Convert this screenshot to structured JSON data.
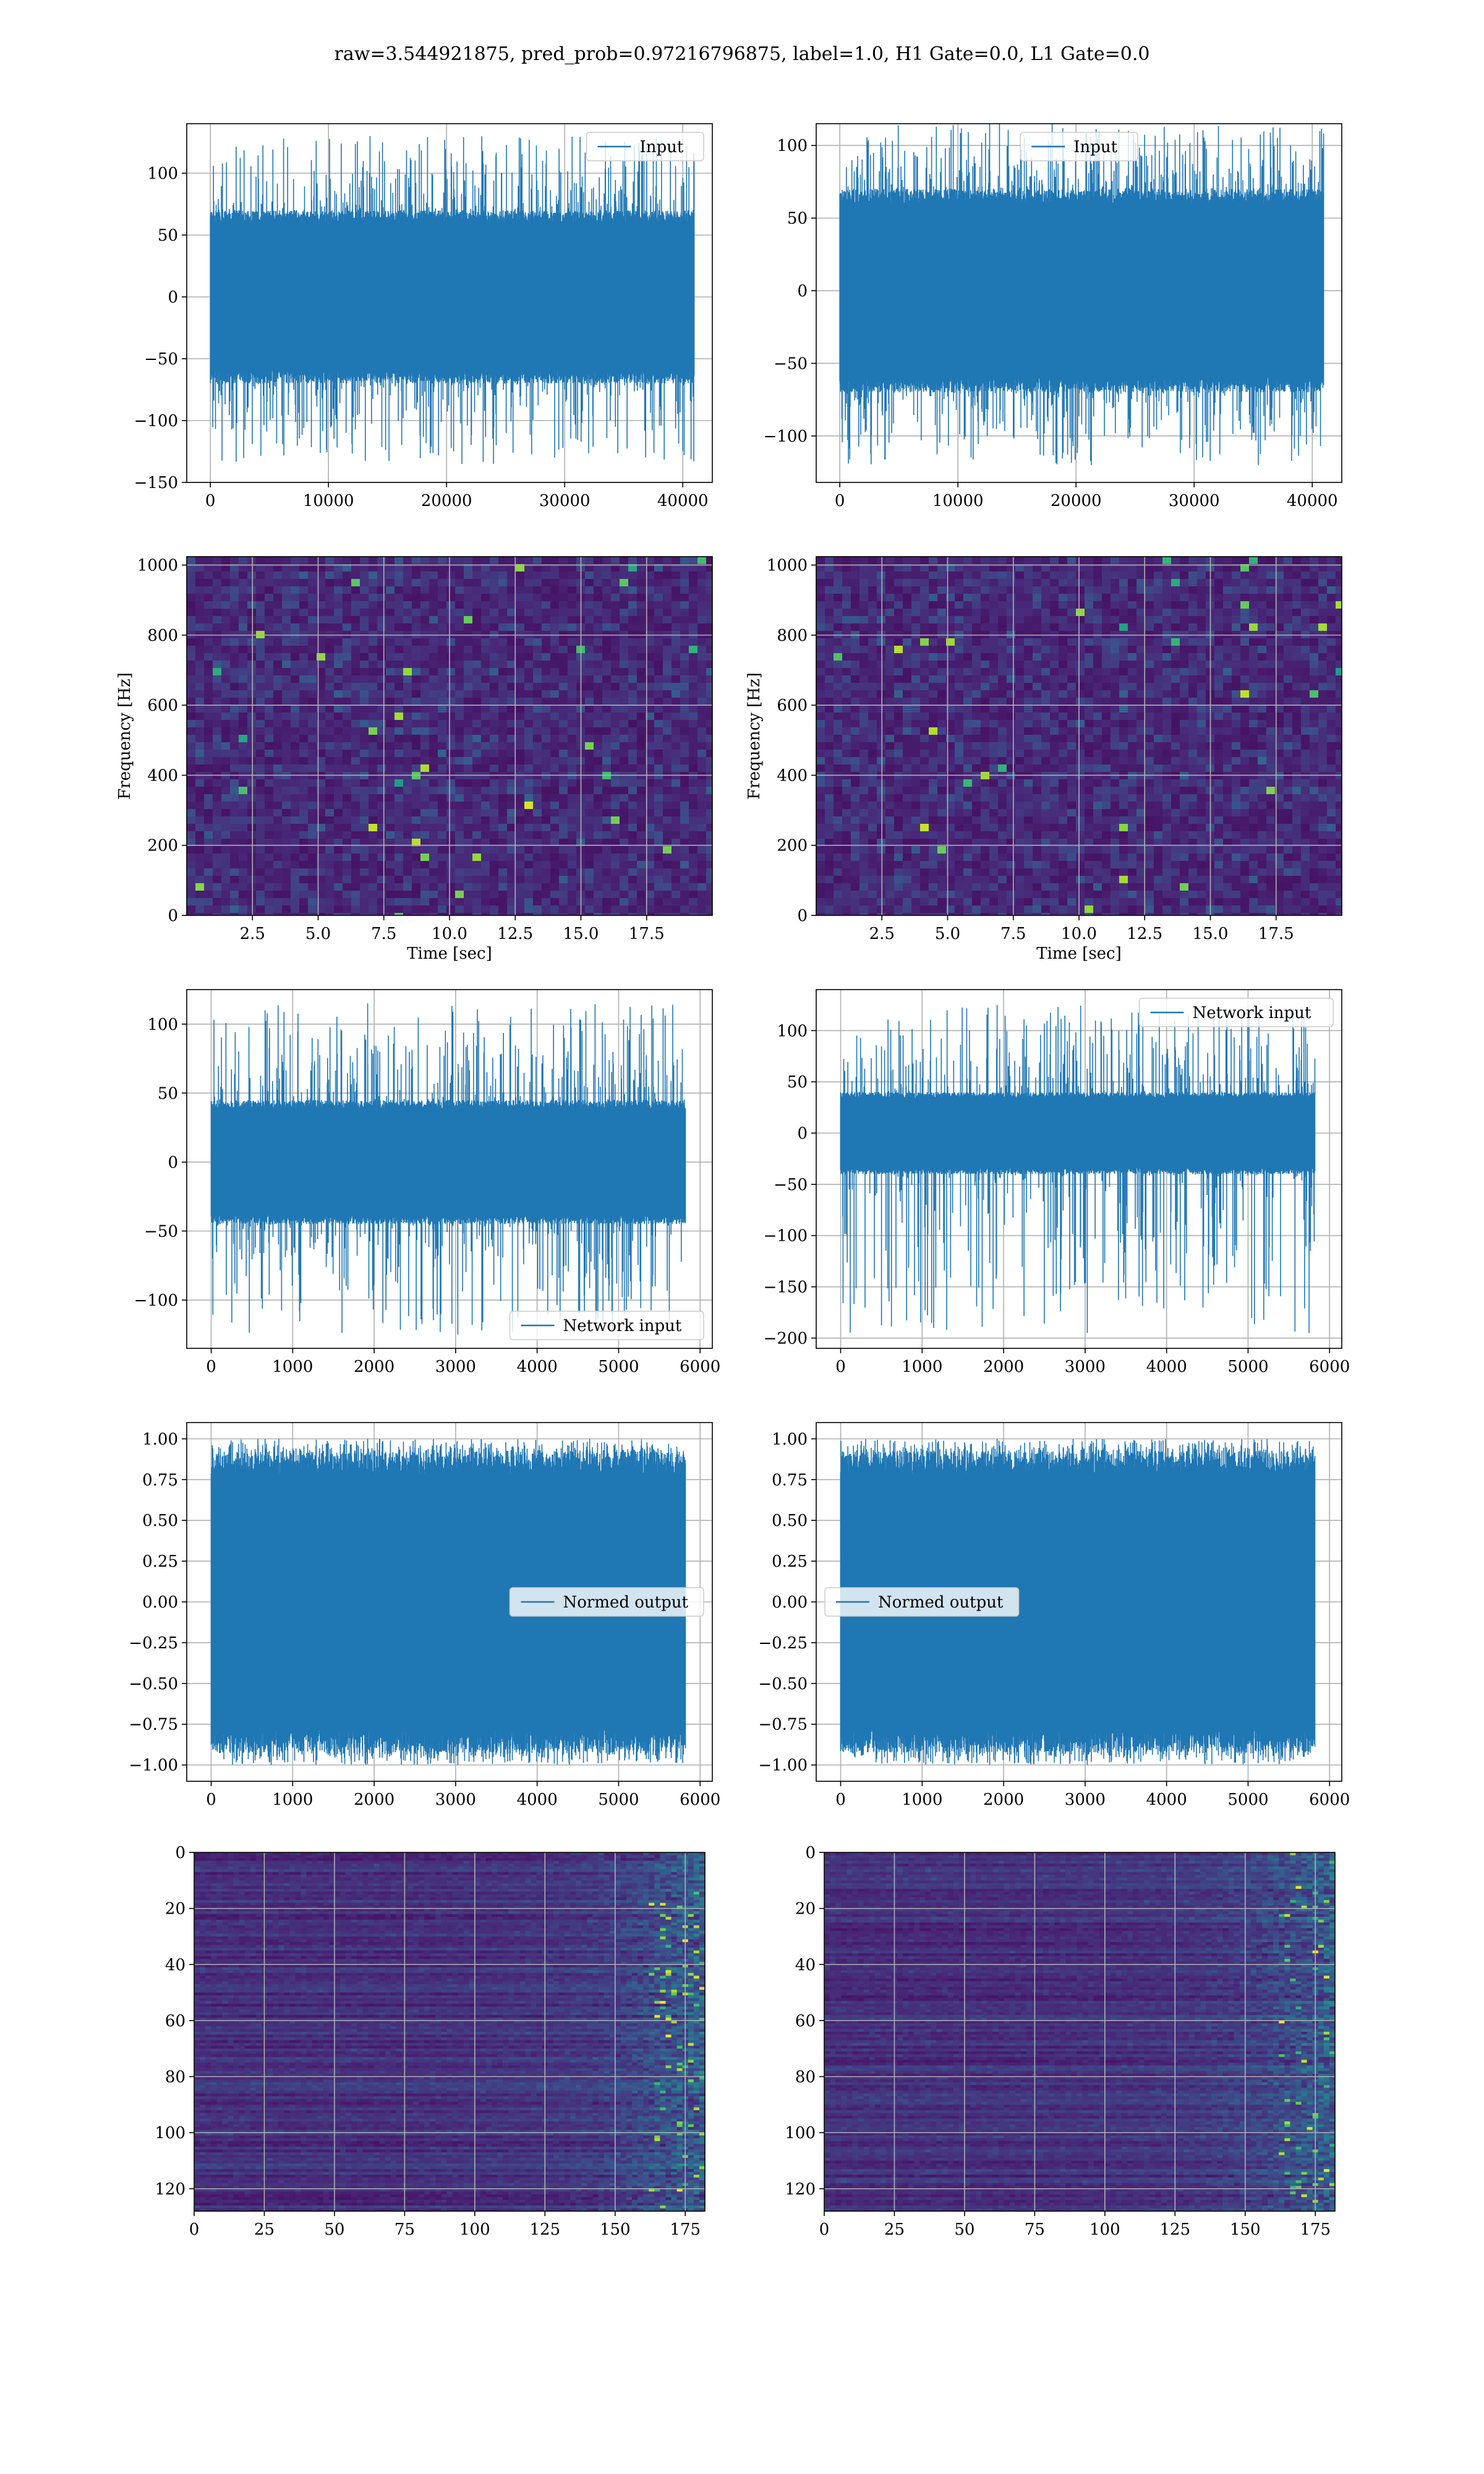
{
  "suptitle": "raw=3.544921875, pred_prob=0.97216796875, label=1.0, H1 Gate=0.0, L1 Gate=0.0",
  "colors": {
    "line": "#1f77b4",
    "grid": "#b0b0b0",
    "axes": "#000000"
  },
  "chart_data": [
    {
      "id": "r1c1",
      "type": "line",
      "title": "",
      "xlabel": "",
      "ylabel": "",
      "xlim": [
        -2000,
        42500
      ],
      "ylim": [
        -150,
        140
      ],
      "xticks": [
        0,
        10000,
        20000,
        30000,
        40000
      ],
      "yticks": [
        -150,
        -100,
        -50,
        0,
        50,
        100
      ],
      "grid": true,
      "legend": "upper right",
      "series": [
        {
          "name": "Input",
          "x_range": [
            0,
            40960
          ],
          "envelope": [
            -70,
            70
          ],
          "spikes": [
            -135,
            130
          ]
        }
      ]
    },
    {
      "id": "r1c2",
      "type": "line",
      "title": "",
      "xlabel": "",
      "ylabel": "",
      "xlim": [
        -2000,
        42500
      ],
      "ylim": [
        -132,
        115
      ],
      "xticks": [
        0,
        10000,
        20000,
        30000,
        40000
      ],
      "yticks": [
        -100,
        -50,
        0,
        50,
        100
      ],
      "grid": true,
      "legend": "upper center",
      "series": [
        {
          "name": "Input",
          "x_range": [
            0,
            40960
          ],
          "envelope": [
            -70,
            70
          ],
          "spikes": [
            -120,
            115
          ]
        }
      ]
    },
    {
      "id": "r2c1",
      "type": "heatmap",
      "title": "",
      "xlabel": "Time [sec]",
      "ylabel": "Frequency [Hz]",
      "xlim": [
        0,
        20
      ],
      "ylim": [
        0,
        1024
      ],
      "xticks": [
        2.5,
        5.0,
        7.5,
        10.0,
        12.5,
        15.0,
        17.5
      ],
      "yticks": [
        0,
        200,
        400,
        600,
        800,
        1000
      ],
      "grid": true,
      "colormap": "viridis"
    },
    {
      "id": "r2c2",
      "type": "heatmap",
      "title": "",
      "xlabel": "Time [sec]",
      "ylabel": "Frequency [Hz]",
      "xlim": [
        0,
        20
      ],
      "ylim": [
        0,
        1024
      ],
      "xticks": [
        2.5,
        5.0,
        7.5,
        10.0,
        12.5,
        15.0,
        17.5
      ],
      "yticks": [
        0,
        200,
        400,
        600,
        800,
        1000
      ],
      "grid": true,
      "colormap": "viridis"
    },
    {
      "id": "r3c1",
      "type": "line",
      "title": "",
      "xlabel": "",
      "ylabel": "",
      "xlim": [
        -300,
        6150
      ],
      "ylim": [
        -135,
        125
      ],
      "xticks": [
        0,
        1000,
        2000,
        3000,
        4000,
        5000,
        6000
      ],
      "yticks": [
        -100,
        -50,
        0,
        50,
        100
      ],
      "grid": true,
      "legend": "lower right",
      "series": [
        {
          "name": "Network input",
          "x_range": [
            0,
            5820
          ],
          "envelope": [
            -45,
            45
          ],
          "spikes": [
            -125,
            115
          ]
        }
      ]
    },
    {
      "id": "r3c2",
      "type": "line",
      "title": "",
      "xlabel": "",
      "ylabel": "",
      "xlim": [
        -300,
        6150
      ],
      "ylim": [
        -210,
        140
      ],
      "xticks": [
        0,
        1000,
        2000,
        3000,
        4000,
        5000,
        6000
      ],
      "yticks": [
        -200,
        -150,
        -100,
        -50,
        0,
        50,
        100
      ],
      "grid": true,
      "legend": "upper right",
      "series": [
        {
          "name": "Network input",
          "x_range": [
            0,
            5820
          ],
          "envelope": [
            -40,
            40
          ],
          "spikes": [
            -195,
            125
          ]
        }
      ]
    },
    {
      "id": "r4c1",
      "type": "line",
      "title": "",
      "xlabel": "",
      "ylabel": "",
      "xlim": [
        -300,
        6150
      ],
      "ylim": [
        -1.1,
        1.1
      ],
      "xticks": [
        0,
        1000,
        2000,
        3000,
        4000,
        5000,
        6000
      ],
      "yticks": [
        -1.0,
        -0.75,
        -0.5,
        -0.25,
        0.0,
        0.25,
        0.5,
        0.75,
        1.0
      ],
      "grid": true,
      "legend": "center right",
      "series": [
        {
          "name": "Normed output",
          "x_range": [
            0,
            5820
          ],
          "envelope": [
            -0.92,
            0.92
          ],
          "spikes": [
            -1.0,
            1.0
          ]
        }
      ]
    },
    {
      "id": "r4c2",
      "type": "line",
      "title": "",
      "xlabel": "",
      "ylabel": "",
      "xlim": [
        -300,
        6150
      ],
      "ylim": [
        -1.1,
        1.1
      ],
      "xticks": [
        0,
        1000,
        2000,
        3000,
        4000,
        5000,
        6000
      ],
      "yticks": [
        -1.0,
        -0.75,
        -0.5,
        -0.25,
        0.0,
        0.25,
        0.5,
        0.75,
        1.0
      ],
      "grid": true,
      "legend": "center left",
      "series": [
        {
          "name": "Normed output",
          "x_range": [
            0,
            5820
          ],
          "envelope": [
            -0.92,
            0.92
          ],
          "spikes": [
            -1.0,
            1.0
          ]
        }
      ]
    },
    {
      "id": "r5c1",
      "type": "heatmap",
      "title": "",
      "xlabel": "",
      "ylabel": "",
      "xlim": [
        0,
        182
      ],
      "ylim": [
        128,
        0
      ],
      "xticks": [
        0,
        25,
        50,
        75,
        100,
        125,
        150,
        175
      ],
      "yticks": [
        0,
        20,
        40,
        60,
        80,
        100,
        120
      ],
      "grid": true,
      "colormap": "viridis"
    },
    {
      "id": "r5c2",
      "type": "heatmap",
      "title": "",
      "xlabel": "",
      "ylabel": "",
      "xlim": [
        0,
        182
      ],
      "ylim": [
        128,
        0
      ],
      "xticks": [
        0,
        25,
        50,
        75,
        100,
        125,
        150,
        175
      ],
      "yticks": [
        0,
        20,
        40,
        60,
        80,
        100,
        120
      ],
      "grid": true,
      "colormap": "viridis"
    }
  ]
}
